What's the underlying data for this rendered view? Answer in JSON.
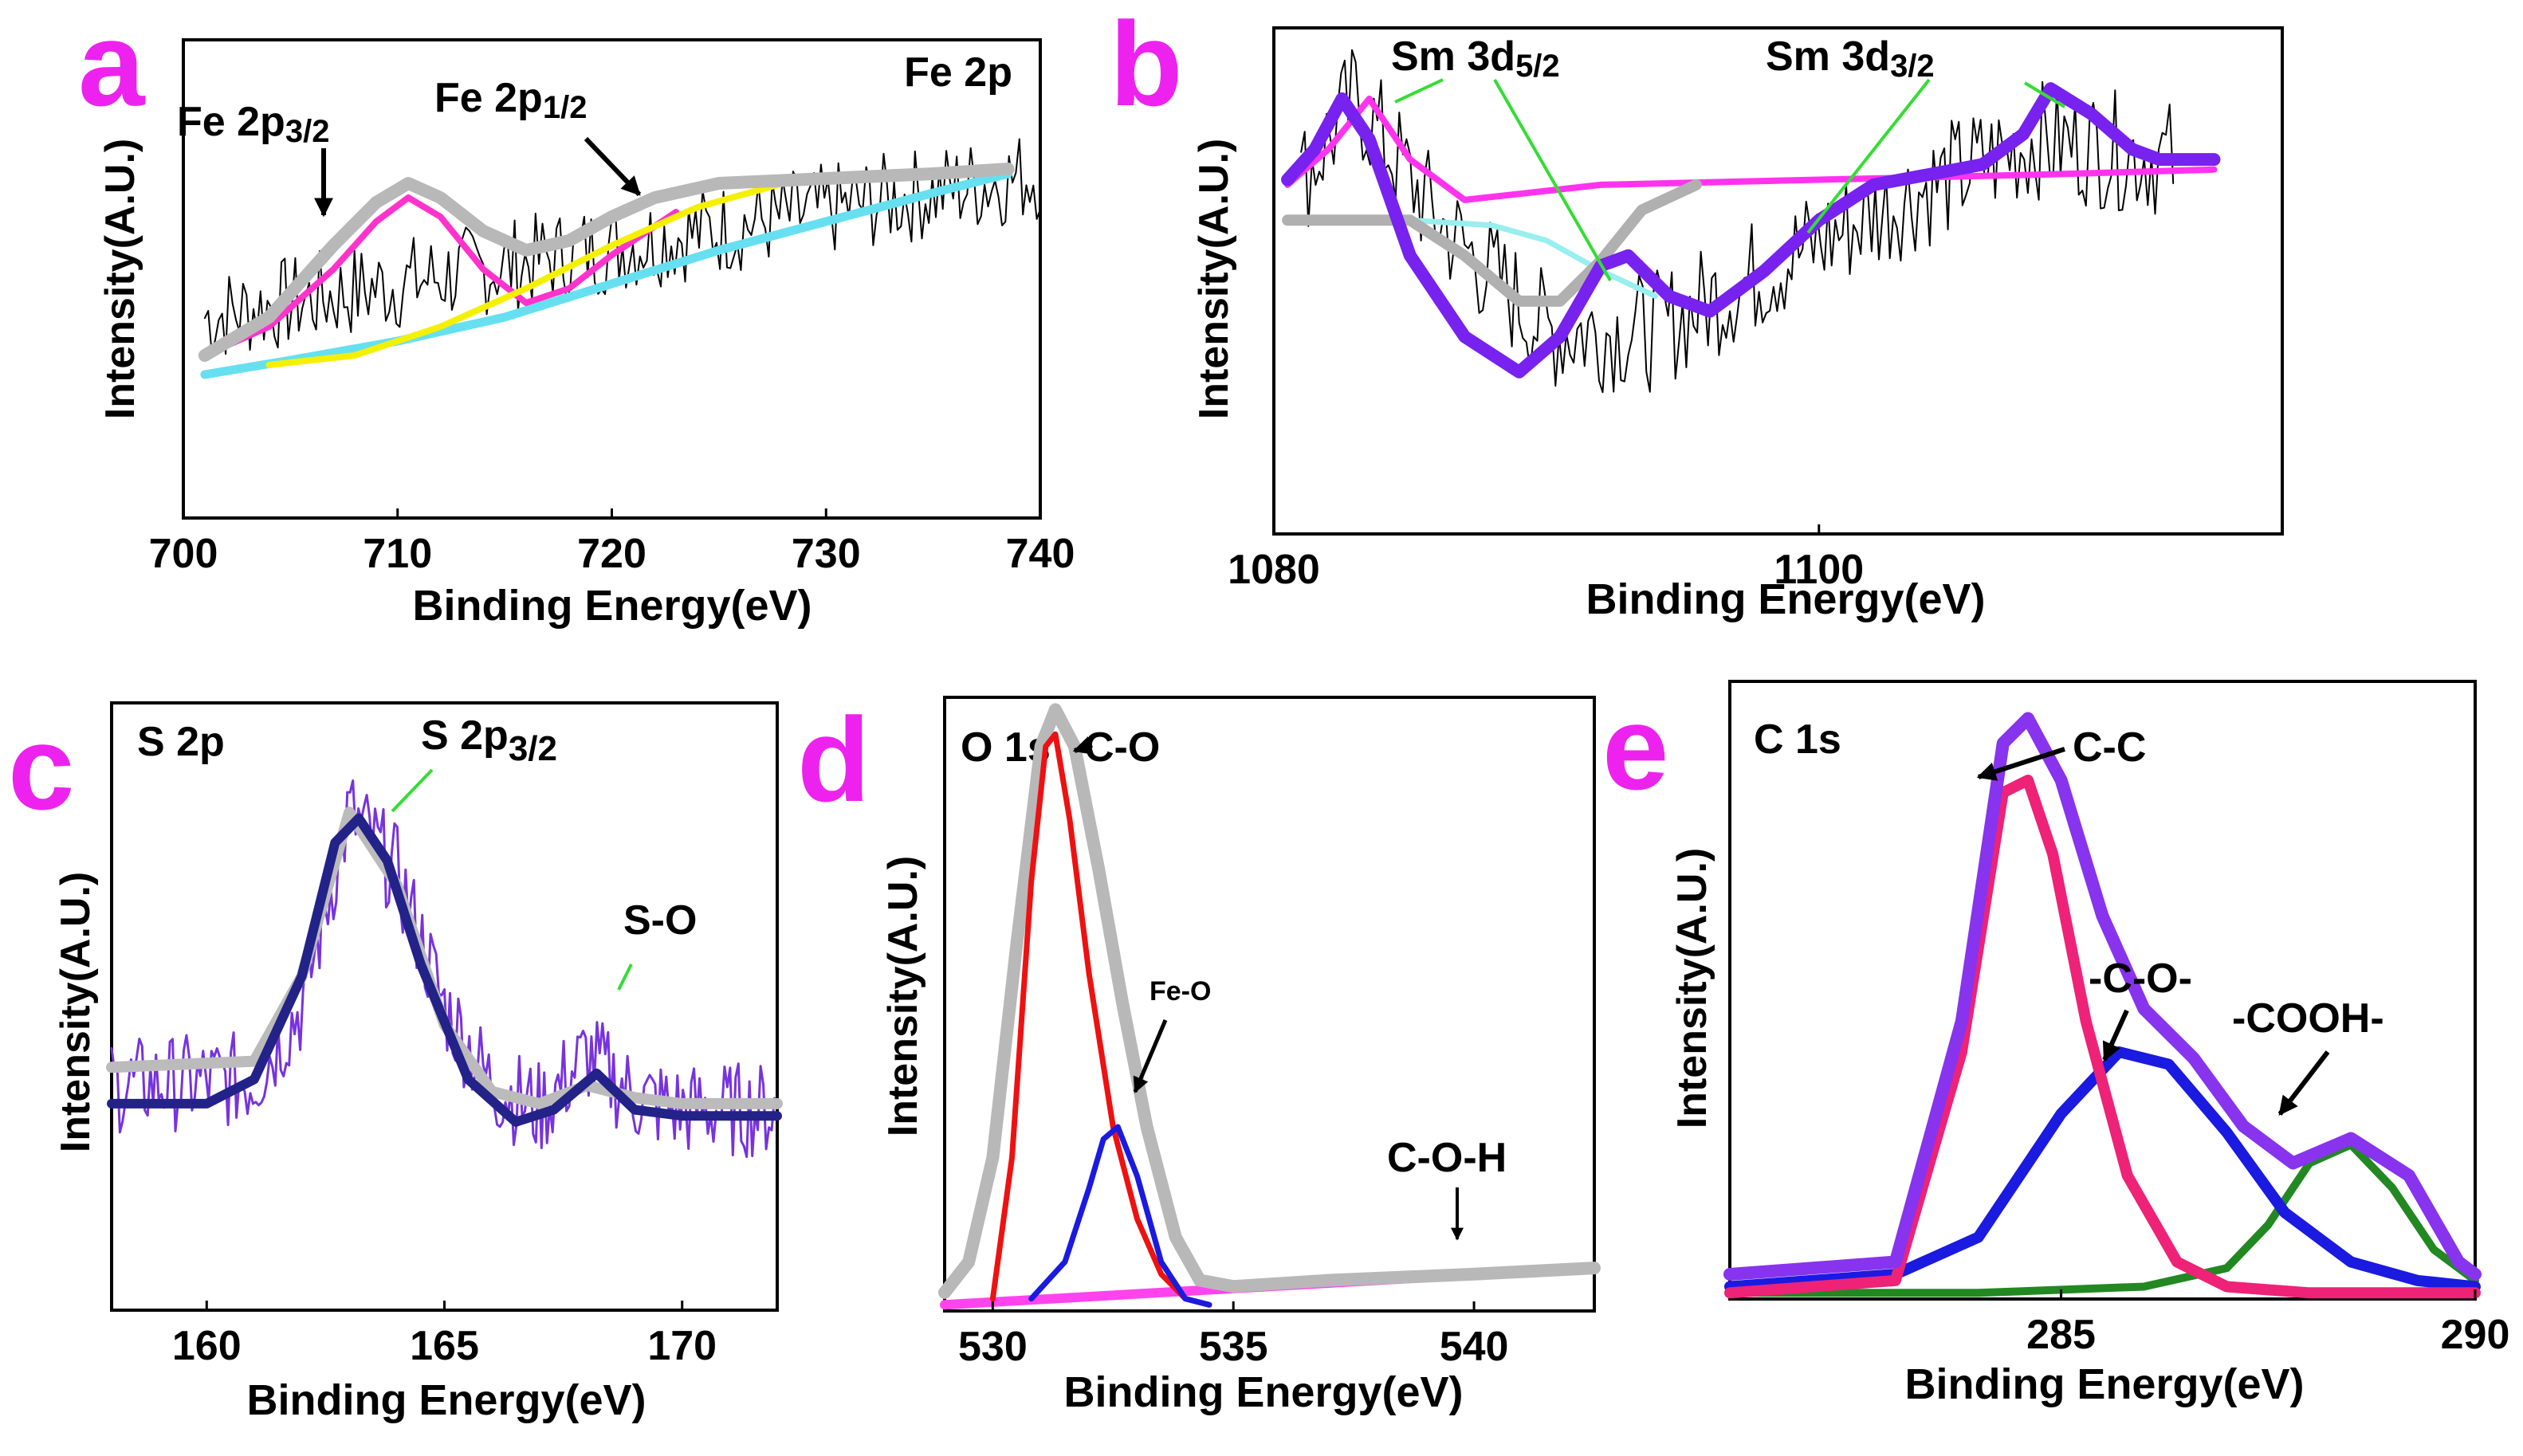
{
  "chart_data": [
    {
      "id": "a",
      "type": "line",
      "panel_label": "a",
      "title": "Fe 2p",
      "xlabel": "Binding Energy(eV)",
      "ylabel": "Intensity(A.U.)",
      "xlim": [
        700,
        740
      ],
      "ylim": [
        0,
        1
      ],
      "xticks": [
        700,
        710,
        720,
        730,
        740
      ],
      "annotations": [
        {
          "base": "Fe 2p",
          "sub": "3/2",
          "x": 706.5,
          "y": 0.77
        },
        {
          "base": "Fe 2p",
          "sub": "1/2",
          "x": 723,
          "y": 0.74
        }
      ],
      "series": [
        {
          "name": "raw data",
          "color": "#000000",
          "noise": 0.1,
          "width": 2,
          "x": [
            701,
            740
          ],
          "values": [
            0.42,
            0.72
          ]
        },
        {
          "name": "Shirley background",
          "color": "#66e0f0",
          "width": 11,
          "x": [
            701,
            705,
            710,
            715,
            720,
            725,
            730,
            735,
            738.5
          ],
          "values": [
            0.3,
            0.33,
            0.37,
            0.42,
            0.49,
            0.56,
            0.62,
            0.68,
            0.72
          ]
        },
        {
          "name": "Fe 2p3/2 fit",
          "color": "#ff33cc",
          "width": 8,
          "x": [
            701,
            704,
            707,
            709,
            710.5,
            712,
            714,
            716,
            718,
            720,
            723
          ],
          "values": [
            0.34,
            0.4,
            0.52,
            0.62,
            0.67,
            0.63,
            0.52,
            0.45,
            0.48,
            0.55,
            0.64
          ]
        },
        {
          "name": "Fe 2p1/2 fit",
          "color": "#f5f000",
          "width": 8,
          "x": [
            704,
            708,
            712,
            716,
            720,
            724,
            728,
            732,
            738
          ],
          "values": [
            0.32,
            0.34,
            0.4,
            0.48,
            0.57,
            0.65,
            0.7,
            0.72,
            0.73
          ]
        },
        {
          "name": "envelope",
          "color": "#b8b8b8",
          "width": 16,
          "x": [
            701,
            704,
            707,
            709,
            710.5,
            712,
            714,
            716,
            718,
            720,
            722,
            725,
            730,
            735,
            738.5
          ],
          "values": [
            0.34,
            0.42,
            0.57,
            0.66,
            0.7,
            0.67,
            0.6,
            0.56,
            0.58,
            0.63,
            0.67,
            0.7,
            0.71,
            0.72,
            0.73
          ]
        }
      ]
    },
    {
      "id": "b",
      "type": "line",
      "panel_label": "b",
      "title": "",
      "xlabel": "Binding Energy(eV)",
      "ylabel": "Intensity(A.U.)",
      "xlim": [
        1080,
        1117
      ],
      "ylim": [
        0,
        1
      ],
      "xticks": [
        1080,
        1100
      ],
      "annotations": [
        {
          "base": "Sm 3d",
          "sub": "5/2",
          "x": 1082,
          "y": 0.97
        },
        {
          "base": "Sm 3d",
          "sub": "3/2",
          "x": 1101,
          "y": 0.97
        }
      ],
      "series": [
        {
          "name": "raw data",
          "color": "#000000",
          "noise": 0.12,
          "width": 2,
          "x": [
            1081,
            1083,
            1086,
            1090,
            1094,
            1098,
            1103,
            1108,
            1113
          ],
          "values": [
            0.7,
            0.86,
            0.62,
            0.4,
            0.4,
            0.52,
            0.66,
            0.78,
            0.74
          ]
        },
        {
          "name": "Sm 3d5/2 fit",
          "color": "#ff33ee",
          "width": 8,
          "x": [
            1080.5,
            1082,
            1083.5,
            1085,
            1087,
            1092,
            1100,
            1108,
            1114.5
          ],
          "values": [
            0.69,
            0.76,
            0.86,
            0.74,
            0.66,
            0.69,
            0.7,
            0.71,
            0.72
          ]
        },
        {
          "name": "background 1",
          "color": "#99eeee",
          "width": 7,
          "x": [
            1080.5,
            1085,
            1088,
            1090,
            1092,
            1094
          ],
          "values": [
            0.62,
            0.62,
            0.61,
            0.58,
            0.52,
            0.47
          ]
        },
        {
          "name": "background 2",
          "color": "#b0b0b0",
          "width": 14,
          "x": [
            1080.5,
            1085,
            1087,
            1089,
            1090.5,
            1092,
            1093.5,
            1095.5
          ],
          "values": [
            0.62,
            0.62,
            0.55,
            0.46,
            0.46,
            0.54,
            0.64,
            0.69
          ]
        },
        {
          "name": "envelope",
          "color": "#7722ee",
          "width": 16,
          "x": [
            1080.5,
            1081.5,
            1082.5,
            1083.5,
            1085,
            1087,
            1089,
            1090.5,
            1092,
            1093,
            1094.5,
            1096,
            1098,
            1100,
            1102,
            1104,
            1106,
            1107.5,
            1108.5,
            1110,
            1111.5,
            1112.5,
            1114.5
          ],
          "values": [
            0.7,
            0.76,
            0.86,
            0.78,
            0.55,
            0.39,
            0.32,
            0.39,
            0.53,
            0.55,
            0.47,
            0.44,
            0.52,
            0.62,
            0.69,
            0.71,
            0.73,
            0.79,
            0.88,
            0.83,
            0.76,
            0.74,
            0.74
          ]
        }
      ]
    },
    {
      "id": "c",
      "type": "line",
      "panel_label": "c",
      "title": "S 2p",
      "xlabel": "Binding Energy(eV)",
      "ylabel": "Intensity(A.U.)",
      "xlim": [
        158,
        172
      ],
      "ylim": [
        0,
        1
      ],
      "xticks": [
        160,
        165,
        170
      ],
      "annotations": [
        {
          "base": "S 2p",
          "sub": "3/2",
          "x": 163.3,
          "y": 0.93
        },
        {
          "base": "S-O",
          "sub": "",
          "x": 168.5,
          "y": 0.56
        }
      ],
      "series": [
        {
          "name": "raw data",
          "color": "#7733dd",
          "noise": 0.08,
          "width": 3,
          "x": [
            158,
            161,
            162,
            163,
            164,
            165,
            166,
            167,
            168,
            169,
            170,
            172
          ],
          "values": [
            0.37,
            0.38,
            0.5,
            0.82,
            0.72,
            0.5,
            0.37,
            0.33,
            0.42,
            0.35,
            0.33,
            0.33
          ]
        },
        {
          "name": "background",
          "color": "#bbbbbb",
          "width": 14,
          "x": [
            158,
            161,
            162,
            163,
            164,
            165,
            166,
            167,
            168,
            169,
            170,
            172
          ],
          "values": [
            0.4,
            0.41,
            0.55,
            0.82,
            0.7,
            0.47,
            0.36,
            0.34,
            0.37,
            0.35,
            0.34,
            0.34
          ]
        },
        {
          "name": "fit",
          "color": "#222288",
          "width": 12,
          "x": [
            158,
            160,
            161,
            162,
            162.7,
            163.2,
            163.8,
            164.5,
            165.5,
            166.5,
            167.3,
            168.2,
            169,
            170,
            172
          ],
          "values": [
            0.34,
            0.34,
            0.38,
            0.55,
            0.77,
            0.81,
            0.74,
            0.57,
            0.38,
            0.31,
            0.33,
            0.39,
            0.33,
            0.32,
            0.32
          ]
        }
      ]
    },
    {
      "id": "d",
      "type": "line",
      "panel_label": "d",
      "title": "O 1s",
      "xlabel": "Binding Energy(eV)",
      "ylabel": "Intensity(A.U.)",
      "xlim": [
        529,
        542.5
      ],
      "ylim": [
        0,
        1
      ],
      "xticks": [
        530,
        535,
        540
      ],
      "annotations": [
        {
          "base": "C-O",
          "sub": "",
          "x": 532.6,
          "y": 0.94
        },
        {
          "base": "Fe-O",
          "sub": "",
          "x": 532.9,
          "y": 0.52
        },
        {
          "base": "C-O-H",
          "sub": "",
          "x": 539.7,
          "y": 0.21
        }
      ],
      "series": [
        {
          "name": "C-O-H component",
          "color": "#ff44ee",
          "width": 12,
          "x": [
            529,
            542.5
          ],
          "values": [
            0.01,
            0.07
          ]
        },
        {
          "name": "envelope",
          "color": "#b8b8b8",
          "width": 16,
          "x": [
            529,
            529.5,
            530,
            530.5,
            531,
            531.3,
            531.7,
            532.2,
            532.7,
            533.2,
            533.8,
            534.3,
            535,
            537,
            540,
            542.5
          ],
          "values": [
            0.03,
            0.08,
            0.25,
            0.6,
            0.92,
            0.98,
            0.92,
            0.72,
            0.5,
            0.3,
            0.12,
            0.05,
            0.04,
            0.05,
            0.06,
            0.07
          ]
        },
        {
          "name": "C-O component",
          "color": "#ee1111",
          "width": 7,
          "x": [
            530,
            530.4,
            530.8,
            531.1,
            531.3,
            531.6,
            532,
            532.5,
            533,
            533.5,
            534,
            534.5
          ],
          "values": [
            0.02,
            0.25,
            0.7,
            0.92,
            0.94,
            0.8,
            0.55,
            0.3,
            0.15,
            0.06,
            0.02,
            0.01
          ]
        },
        {
          "name": "Fe-O component",
          "color": "#1a1ae0",
          "width": 7,
          "x": [
            530.8,
            531.5,
            532,
            532.3,
            532.6,
            533,
            533.5,
            534,
            534.5
          ],
          "values": [
            0.02,
            0.08,
            0.2,
            0.28,
            0.3,
            0.22,
            0.08,
            0.02,
            0.01
          ]
        }
      ]
    },
    {
      "id": "e",
      "type": "line",
      "panel_label": "e",
      "title": "C 1s",
      "xlabel": "Binding Energy(eV)",
      "ylabel": "Intensity(A.U.)",
      "xlim": [
        281,
        290
      ],
      "ylim": [
        0,
        1
      ],
      "xticks": [
        285,
        290
      ],
      "annotations": [
        {
          "base": "C-C",
          "sub": "",
          "x": 285.6,
          "y": 0.92
        },
        {
          "base": "-C-O-",
          "sub": "",
          "x": 286.4,
          "y": 0.52
        },
        {
          "base": "-COOH-",
          "sub": "",
          "x": 288.6,
          "y": 0.45
        }
      ],
      "series": [
        {
          "name": "baseline (green)",
          "color": "#228822",
          "width": 10,
          "x": [
            281,
            284,
            286,
            287,
            287.5,
            288,
            288.5,
            289,
            289.5,
            290
          ],
          "values": [
            0.01,
            0.01,
            0.02,
            0.05,
            0.12,
            0.22,
            0.25,
            0.18,
            0.08,
            0.03
          ]
        },
        {
          "name": "-C-O- component",
          "color": "#1a1ae0",
          "width": 14,
          "x": [
            281,
            283,
            284,
            285,
            285.7,
            286.3,
            287,
            287.7,
            288.5,
            289.3,
            290
          ],
          "values": [
            0.02,
            0.04,
            0.1,
            0.3,
            0.4,
            0.38,
            0.27,
            0.14,
            0.06,
            0.03,
            0.02
          ]
        },
        {
          "name": "C-C component",
          "color": "#ee2277",
          "width": 14,
          "x": [
            281,
            283,
            283.8,
            284.3,
            284.6,
            284.9,
            285.3,
            285.8,
            286.4,
            287,
            288,
            290
          ],
          "values": [
            0.01,
            0.03,
            0.4,
            0.82,
            0.84,
            0.72,
            0.45,
            0.2,
            0.06,
            0.02,
            0.01,
            0.01
          ]
        },
        {
          "name": "envelope",
          "color": "#8833ee",
          "width": 16,
          "x": [
            281,
            283,
            283.8,
            284.3,
            284.6,
            285,
            285.5,
            286,
            286.6,
            287.2,
            287.8,
            288.5,
            289.2,
            289.8,
            290
          ],
          "values": [
            0.04,
            0.06,
            0.45,
            0.9,
            0.94,
            0.84,
            0.62,
            0.47,
            0.39,
            0.28,
            0.22,
            0.26,
            0.2,
            0.06,
            0.04
          ]
        }
      ]
    }
  ]
}
